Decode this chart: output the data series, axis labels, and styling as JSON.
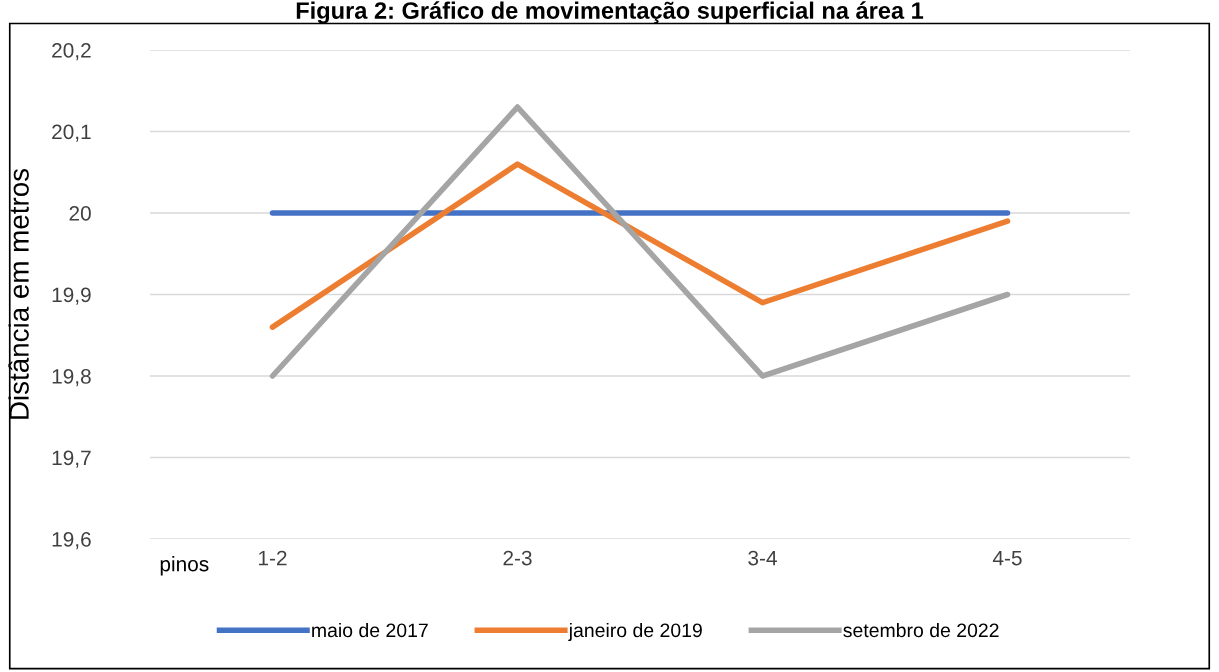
{
  "chart_data": {
    "type": "line",
    "title": "Figura 2: Gráfico de movimentação superficial na área 1",
    "xlabel": "pinos",
    "ylabel": "Distância em metros",
    "categories": [
      "1-2",
      "2-3",
      "3-4",
      "4-5"
    ],
    "series": [
      {
        "name": "maio de 2017",
        "color": "#4472c4",
        "values": [
          20.0,
          20.0,
          20.0,
          20.0
        ]
      },
      {
        "name": "janeiro de 2019",
        "color": "#ed7d31",
        "values": [
          19.86,
          20.06,
          19.89,
          19.99
        ]
      },
      {
        "name": "setembro de 2022",
        "color": "#a5a5a5",
        "values": [
          19.8,
          20.13,
          19.8,
          19.9
        ]
      }
    ],
    "ylim": [
      19.6,
      20.2
    ],
    "yticks": [
      {
        "value": 19.6,
        "label": "19,6"
      },
      {
        "value": 19.7,
        "label": "19,7"
      },
      {
        "value": 19.8,
        "label": "19,8"
      },
      {
        "value": 19.9,
        "label": "19,9"
      },
      {
        "value": 20.0,
        "label": "20"
      },
      {
        "value": 20.1,
        "label": "20,1"
      },
      {
        "value": 20.2,
        "label": "20,2"
      }
    ],
    "grid": "y",
    "legend": "bottom",
    "marker": "none",
    "line_style": "solid"
  }
}
